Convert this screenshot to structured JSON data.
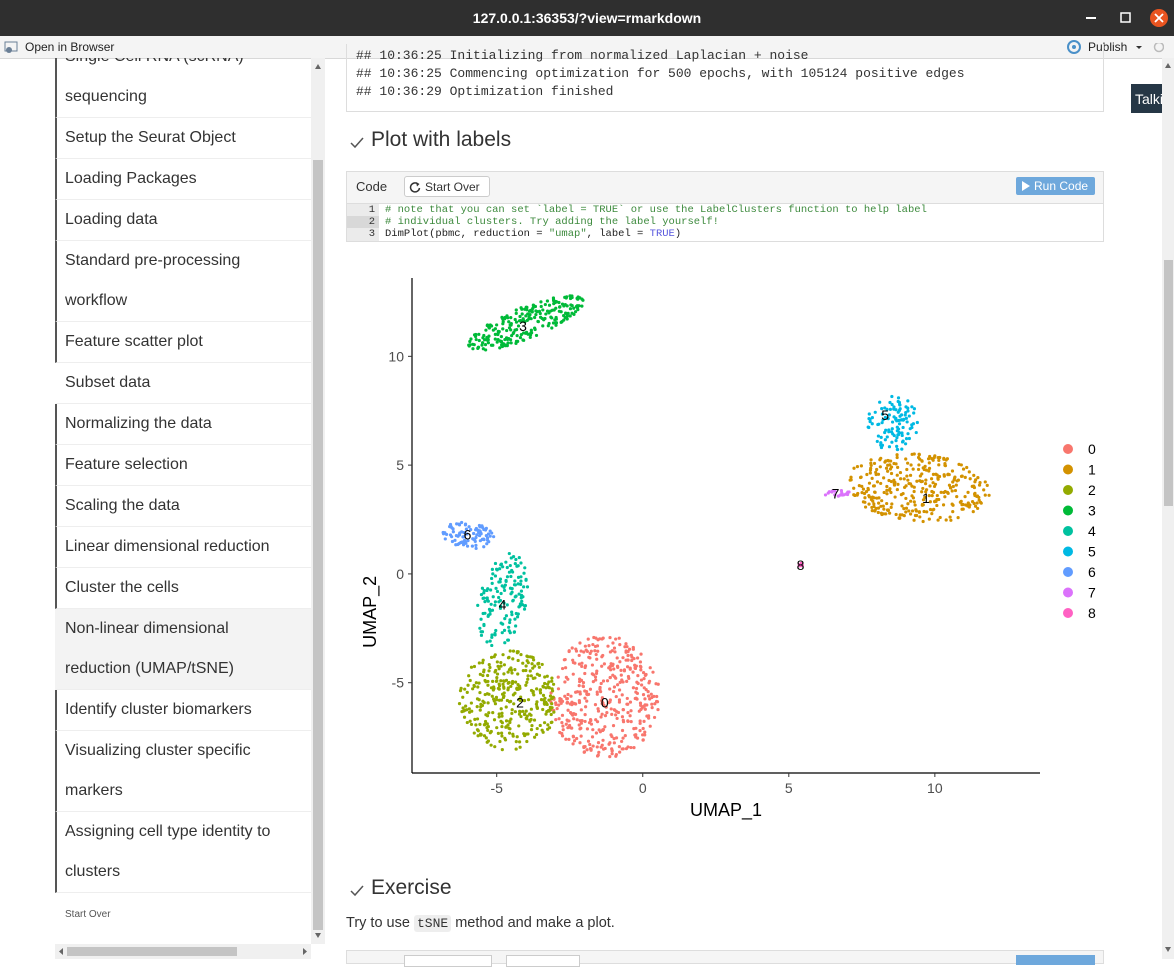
{
  "window": {
    "title": "127.0.0.1:36353/?view=rmarkdown"
  },
  "toolbar": {
    "open_in_browser": "Open in Browser",
    "publish": "Publish"
  },
  "sidebar": {
    "items": [
      "Single Cell RNA (scRNA) sequencing",
      "Setup the Seurat Object",
      "Loading Packages",
      "Loading data",
      "Standard pre-processing workflow",
      "Feature scatter plot",
      "Subset data",
      "Normalizing the data",
      "Feature selection",
      "Scaling the data",
      "Linear dimensional reduction",
      "Cluster the cells",
      "Non-linear dimensional reduction (UMAP/tSNE)",
      "Identify cluster biomarkers",
      "Visualizing cluster specific markers",
      "Assigning cell type identity to clusters"
    ],
    "start_over": "Start Over"
  },
  "side_tab": "Talkin",
  "console_lines": [
    "## 10:36:25 Initializing from normalized Laplacian + noise",
    "## 10:36:25 Commencing optimization for 500 epochs, with 105124 positive edges",
    "## 10:36:29 Optimization finished"
  ],
  "section1": {
    "heading": "Plot with labels",
    "code_label": "Code",
    "start_over": "Start Over",
    "run_code": "Run Code",
    "code_lines": [
      {
        "number": 1,
        "tokens": [
          "# note that you can set `label = TRUE` or use the LabelClusters function to help label"
        ]
      },
      {
        "number": 2,
        "tokens": [
          "# individual clusters. Try adding the label yourself!"
        ]
      },
      {
        "number": 3,
        "tokens": [
          "DimPlot(pbmc, reduction = ",
          "\"umap\"",
          ", label = ",
          "TRUE",
          ")"
        ]
      }
    ]
  },
  "chart_data": {
    "type": "scatter",
    "x_label": "UMAP_1",
    "y_label": "UMAP_2",
    "xlim": [
      -7.9,
      13.6
    ],
    "ylim": [
      -9.15,
      13.6
    ],
    "xticks": [
      -5,
      0,
      5,
      10
    ],
    "yticks": [
      -5,
      0,
      5,
      10
    ],
    "legend": "right",
    "series": [
      {
        "name": "0",
        "color": "#F8766D",
        "x": [
          -1.3
        ],
        "y": [
          -5.9
        ]
      },
      {
        "name": "1",
        "color": "#D39200",
        "x": [
          9.7
        ],
        "y": [
          3.5
        ]
      },
      {
        "name": "2",
        "color": "#93AA00",
        "x": [
          -4.2
        ],
        "y": [
          -5.9
        ]
      },
      {
        "name": "3",
        "color": "#00BA38",
        "x": [
          -4.1
        ],
        "y": [
          11.4
        ]
      },
      {
        "name": "4",
        "color": "#00C19F",
        "x": [
          -4.8
        ],
        "y": [
          -1.4
        ]
      },
      {
        "name": "5",
        "color": "#00B9E3",
        "x": [
          8.3
        ],
        "y": [
          7.3
        ]
      },
      {
        "name": "6",
        "color": "#619CFF",
        "x": [
          -6.0
        ],
        "y": [
          1.8
        ]
      },
      {
        "name": "7",
        "color": "#DB72FB",
        "x": [
          6.6
        ],
        "y": [
          3.7
        ]
      },
      {
        "name": "8",
        "color": "#FF61C3",
        "x": [
          5.4
        ],
        "y": [
          0.4
        ]
      }
    ]
  },
  "section2": {
    "heading": "Exercise",
    "text_before": "Try to use",
    "code": "tSNE",
    "text_after": "method and make a plot."
  }
}
